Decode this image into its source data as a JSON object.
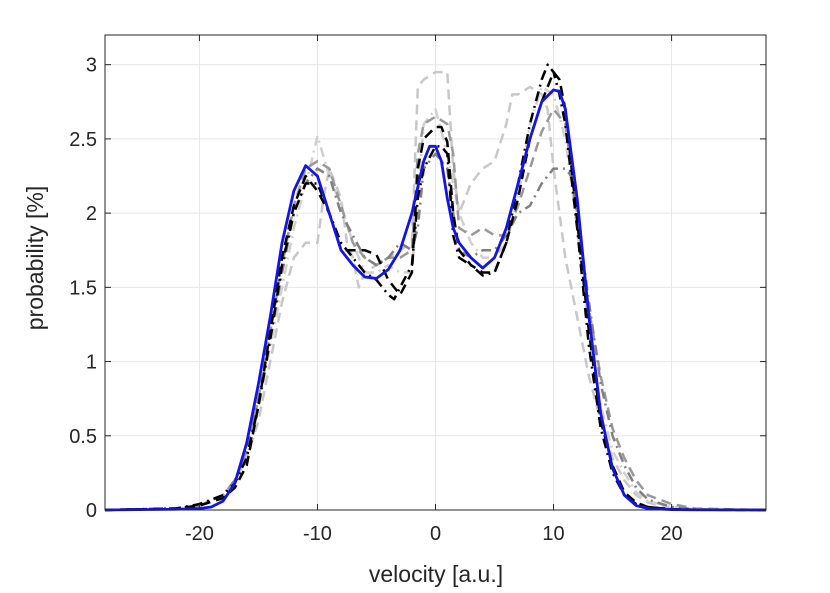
{
  "chart_data": {
    "type": "line",
    "title": "",
    "xlabel": "velocity [a.u.]",
    "ylabel": "probability [%]",
    "xlim": [
      -28,
      28
    ],
    "ylim": [
      0,
      3.2
    ],
    "grid": true,
    "legend": "none",
    "x_ticks": [
      -20,
      -10,
      0,
      10,
      20
    ],
    "x_tick_labels": [
      "-20",
      "-10",
      "0",
      "10",
      "20"
    ],
    "y_ticks": [
      0,
      0.5,
      1,
      1.5,
      2,
      2.5,
      3
    ],
    "y_tick_labels": [
      "0",
      "0.5",
      "1",
      "1.5",
      "2",
      "2.5",
      "3"
    ],
    "series": [
      {
        "color": "#c8c8c8",
        "style": "dashed",
        "width": 2.5,
        "x": [
          -28,
          -22,
          -20,
          -18,
          -17,
          -16,
          -15,
          -14,
          -13,
          -12,
          -11,
          -10,
          -9.5,
          -9,
          -8,
          -7.5,
          -7,
          -6.5,
          -6,
          -5,
          -4,
          -3,
          -2,
          -1.5,
          -1,
          0,
          1,
          1.5,
          2,
          3,
          4,
          5,
          6,
          6.5,
          7,
          8,
          9,
          9.5,
          10,
          11,
          12,
          13,
          14,
          15,
          16,
          17,
          18,
          20,
          22,
          28
        ],
        "y": [
          0,
          0.01,
          0.03,
          0.1,
          0.2,
          0.35,
          0.6,
          1.0,
          1.4,
          1.7,
          1.8,
          1.8,
          2.1,
          2.3,
          2.1,
          1.8,
          1.7,
          1.5,
          1.6,
          1.65,
          1.7,
          1.75,
          1.8,
          2.85,
          2.9,
          2.95,
          2.95,
          2.3,
          2.0,
          2.2,
          2.3,
          2.35,
          2.6,
          2.8,
          2.8,
          2.85,
          2.8,
          2.7,
          2.3,
          1.7,
          1.3,
          0.9,
          0.6,
          0.35,
          0.2,
          0.1,
          0.05,
          0.01,
          0.005,
          0
        ]
      },
      {
        "color": "#d0d0d0",
        "style": "dashdot",
        "width": 2.5,
        "x": [
          -28,
          -22,
          -20,
          -18,
          -17,
          -16,
          -15,
          -14,
          -13,
          -12,
          -11,
          -10.5,
          -10,
          -9,
          -8,
          -7,
          -6,
          -5,
          -4,
          -3,
          -2,
          -1.5,
          -1,
          0,
          1,
          2,
          3,
          4,
          5,
          6,
          7,
          8,
          9,
          10,
          11,
          12,
          13,
          14,
          15,
          16,
          17,
          18,
          20,
          22,
          28
        ],
        "y": [
          0,
          0.01,
          0.03,
          0.1,
          0.2,
          0.4,
          0.7,
          1.1,
          1.5,
          1.9,
          2.2,
          2.35,
          2.52,
          2.25,
          2.05,
          1.8,
          1.6,
          1.6,
          1.65,
          1.6,
          1.6,
          2.1,
          2.6,
          2.7,
          2.4,
          2.0,
          1.8,
          1.7,
          1.7,
          1.8,
          2.1,
          2.6,
          2.85,
          2.8,
          2.5,
          1.9,
          1.2,
          0.7,
          0.4,
          0.25,
          0.12,
          0.06,
          0.02,
          0.005,
          0
        ]
      },
      {
        "color": "#999999",
        "style": "dashed",
        "width": 2.5,
        "x": [
          -28,
          -22,
          -20,
          -18,
          -17,
          -16,
          -15,
          -14,
          -13,
          -12,
          -11,
          -10,
          -9,
          -8,
          -7,
          -6,
          -5,
          -4,
          -3,
          -2,
          -1.5,
          -1,
          0,
          1,
          1.5,
          2,
          3,
          4,
          5,
          6,
          7,
          8,
          9,
          10,
          11,
          12,
          13,
          14,
          15,
          16,
          17,
          18,
          20,
          22,
          28
        ],
        "y": [
          0,
          0.01,
          0.03,
          0.1,
          0.2,
          0.4,
          0.75,
          1.2,
          1.65,
          2.05,
          2.3,
          2.35,
          2.3,
          2.05,
          1.8,
          1.7,
          1.65,
          1.7,
          1.7,
          1.75,
          2.4,
          2.6,
          2.65,
          2.6,
          2.4,
          1.9,
          1.85,
          1.9,
          1.85,
          1.85,
          2.05,
          2.3,
          2.55,
          2.7,
          2.6,
          2.0,
          1.35,
          0.9,
          0.55,
          0.35,
          0.2,
          0.1,
          0.04,
          0.01,
          0
        ]
      },
      {
        "color": "#808080",
        "style": "dashdot",
        "width": 2.5,
        "x": [
          -28,
          -22,
          -20,
          -18,
          -17,
          -16,
          -15,
          -14,
          -13,
          -12,
          -11,
          -10,
          -9,
          -8,
          -7,
          -6,
          -5,
          -4,
          -3,
          -2,
          -1.5,
          -1,
          0,
          1,
          1.5,
          2,
          3,
          4,
          5,
          6,
          7,
          8,
          9,
          10,
          11,
          11.5,
          12,
          13,
          14,
          15,
          16,
          17,
          18,
          20,
          22,
          28
        ],
        "y": [
          0,
          0.01,
          0.03,
          0.1,
          0.2,
          0.4,
          0.75,
          1.15,
          1.6,
          2.0,
          2.2,
          2.3,
          2.25,
          2.0,
          1.85,
          1.7,
          1.65,
          1.7,
          1.8,
          1.75,
          1.9,
          2.3,
          2.4,
          2.3,
          2.0,
          1.75,
          1.7,
          1.75,
          1.75,
          1.85,
          2.0,
          2.05,
          2.2,
          2.3,
          2.3,
          2.25,
          2.0,
          1.4,
          0.85,
          0.5,
          0.3,
          0.15,
          0.07,
          0.02,
          0.005,
          0
        ]
      },
      {
        "color": "#000000",
        "style": "dashed",
        "width": 2.5,
        "x": [
          -28,
          -22,
          -20,
          -18,
          -17,
          -16,
          -15,
          -14,
          -13,
          -12,
          -11,
          -10,
          -9,
          -8,
          -7,
          -6,
          -5,
          -4,
          -3,
          -2,
          -1.5,
          -1,
          0,
          0.5,
          1,
          1.5,
          2,
          3,
          4,
          5,
          6,
          7,
          8,
          9,
          10,
          10.5,
          11,
          12,
          13,
          14,
          15,
          16,
          17,
          18,
          20,
          22,
          28
        ],
        "y": [
          0,
          0.01,
          0.03,
          0.08,
          0.15,
          0.3,
          0.7,
          1.2,
          1.7,
          2.05,
          2.25,
          2.15,
          2.0,
          1.75,
          1.75,
          1.75,
          1.72,
          1.55,
          1.45,
          1.6,
          2.3,
          2.5,
          2.58,
          2.58,
          2.48,
          2.0,
          1.75,
          1.65,
          1.6,
          1.6,
          1.8,
          2.1,
          2.5,
          2.75,
          2.95,
          2.9,
          2.7,
          1.95,
          1.2,
          0.6,
          0.3,
          0.12,
          0.05,
          0.02,
          0.005,
          0.002,
          0
        ]
      },
      {
        "color": "#000000",
        "style": "dashdot",
        "width": 2.5,
        "x": [
          -28,
          -22,
          -20,
          -18,
          -17,
          -16,
          -15,
          -14,
          -13,
          -12,
          -11,
          -10,
          -9,
          -8,
          -7,
          -6,
          -5,
          -4,
          -3.5,
          -3,
          -2,
          -1.5,
          -1,
          0,
          0.5,
          1,
          1.5,
          2,
          3,
          4,
          5,
          6,
          7,
          8,
          9,
          9.5,
          10,
          10.5,
          11,
          12,
          13,
          14,
          15,
          16,
          17,
          18,
          20,
          22,
          28
        ],
        "y": [
          0,
          0.01,
          0.04,
          0.1,
          0.18,
          0.35,
          0.7,
          1.15,
          1.65,
          2.0,
          2.2,
          2.2,
          2.0,
          1.8,
          1.7,
          1.6,
          1.55,
          1.45,
          1.42,
          1.5,
          1.65,
          2.1,
          2.3,
          2.45,
          2.45,
          2.4,
          1.85,
          1.7,
          1.65,
          1.58,
          1.6,
          1.8,
          2.2,
          2.6,
          2.9,
          3.0,
          2.95,
          2.8,
          2.6,
          1.9,
          1.1,
          0.55,
          0.25,
          0.1,
          0.04,
          0.02,
          0.005,
          0.002,
          0
        ]
      },
      {
        "color": "#1414e6",
        "style": "solid",
        "width": 2.8,
        "x": [
          -28,
          -22,
          -20,
          -19,
          -18,
          -17,
          -16,
          -15,
          -14,
          -13,
          -12,
          -11,
          -10,
          -9,
          -8,
          -7,
          -6,
          -5,
          -4,
          -3,
          -2,
          -1,
          -0.5,
          0,
          0.5,
          1,
          1.5,
          2,
          3,
          4,
          5,
          6,
          7,
          8,
          9,
          10,
          10.5,
          11,
          12,
          13,
          14,
          15,
          16,
          17,
          18,
          20,
          22,
          28
        ],
        "y": [
          0,
          0.005,
          0.01,
          0.02,
          0.06,
          0.18,
          0.45,
          0.85,
          1.3,
          1.8,
          2.15,
          2.32,
          2.25,
          2.0,
          1.75,
          1.65,
          1.57,
          1.56,
          1.62,
          1.75,
          2.0,
          2.35,
          2.45,
          2.45,
          2.35,
          2.1,
          1.9,
          1.8,
          1.7,
          1.63,
          1.7,
          1.9,
          2.2,
          2.5,
          2.75,
          2.83,
          2.82,
          2.7,
          2.1,
          1.3,
          0.65,
          0.28,
          0.1,
          0.03,
          0.01,
          0.003,
          0.001,
          0
        ]
      }
    ]
  }
}
